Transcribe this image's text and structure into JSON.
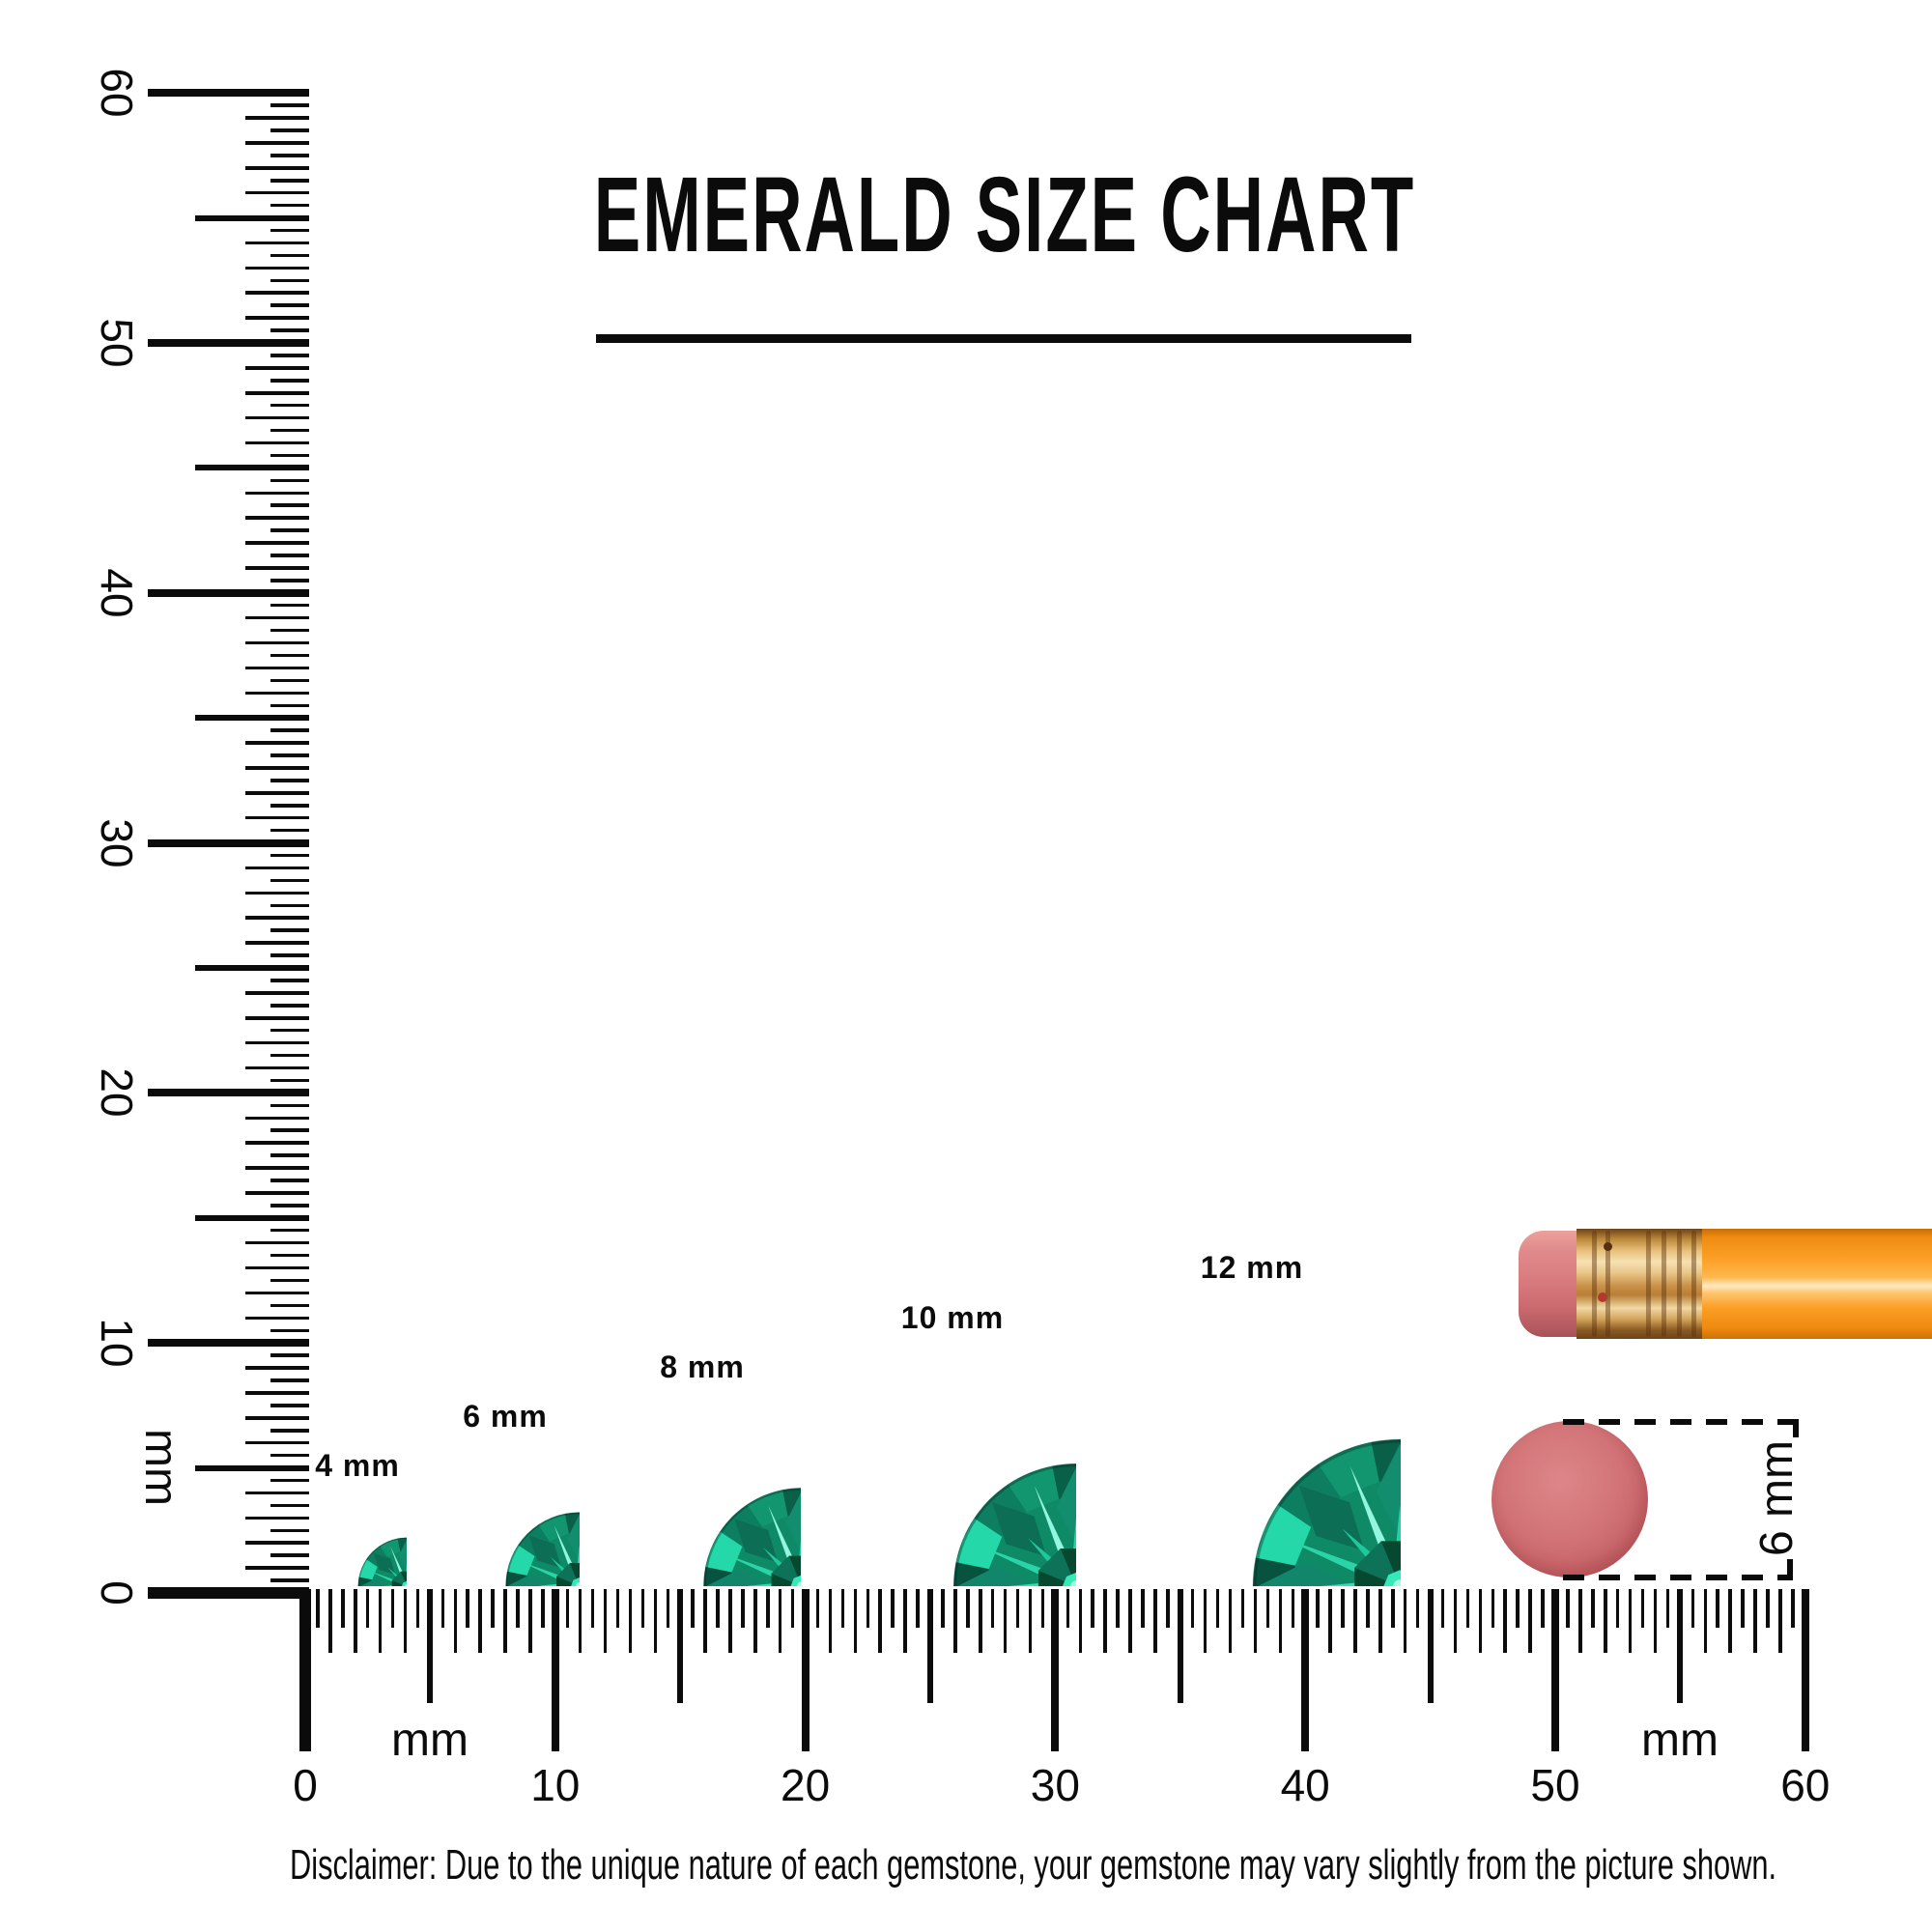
{
  "title": "EMERALD SIZE CHART",
  "ruler_vertical": {
    "unit_label": "mm",
    "tick_labels": [
      "0",
      "10",
      "20",
      "30",
      "40",
      "50",
      "60"
    ]
  },
  "ruler_horizontal": {
    "unit_label_left": "mm",
    "unit_label_right": "mm",
    "tick_labels": [
      "0",
      "10",
      "20",
      "30",
      "40",
      "50",
      "60"
    ]
  },
  "gems": [
    {
      "label": "4 mm",
      "size_mm": 4
    },
    {
      "label": "6 mm",
      "size_mm": 6
    },
    {
      "label": "8 mm",
      "size_mm": 8
    },
    {
      "label": "10 mm",
      "size_mm": 10
    },
    {
      "label": "12 mm",
      "size_mm": 12
    }
  ],
  "eraser_note": {
    "label": "6 mm",
    "size_mm": 6
  },
  "disclaimer": "Disclaimer: Due to the unique nature of each gemstone, your gemstone may vary slightly from the picture shown.",
  "colors": {
    "ink": "#0b0b0b",
    "gem_bright": "#2bdcae",
    "gem_mid": "#0e8a67",
    "gem_dark": "#0b5f49",
    "gem_highlight": "#8cf5dc",
    "pencil_body": "#fb9e24",
    "pencil_ferrule": "#d9a85c",
    "pencil_eraser": "#d8797d",
    "eraser_disc": "#ce6c70"
  }
}
